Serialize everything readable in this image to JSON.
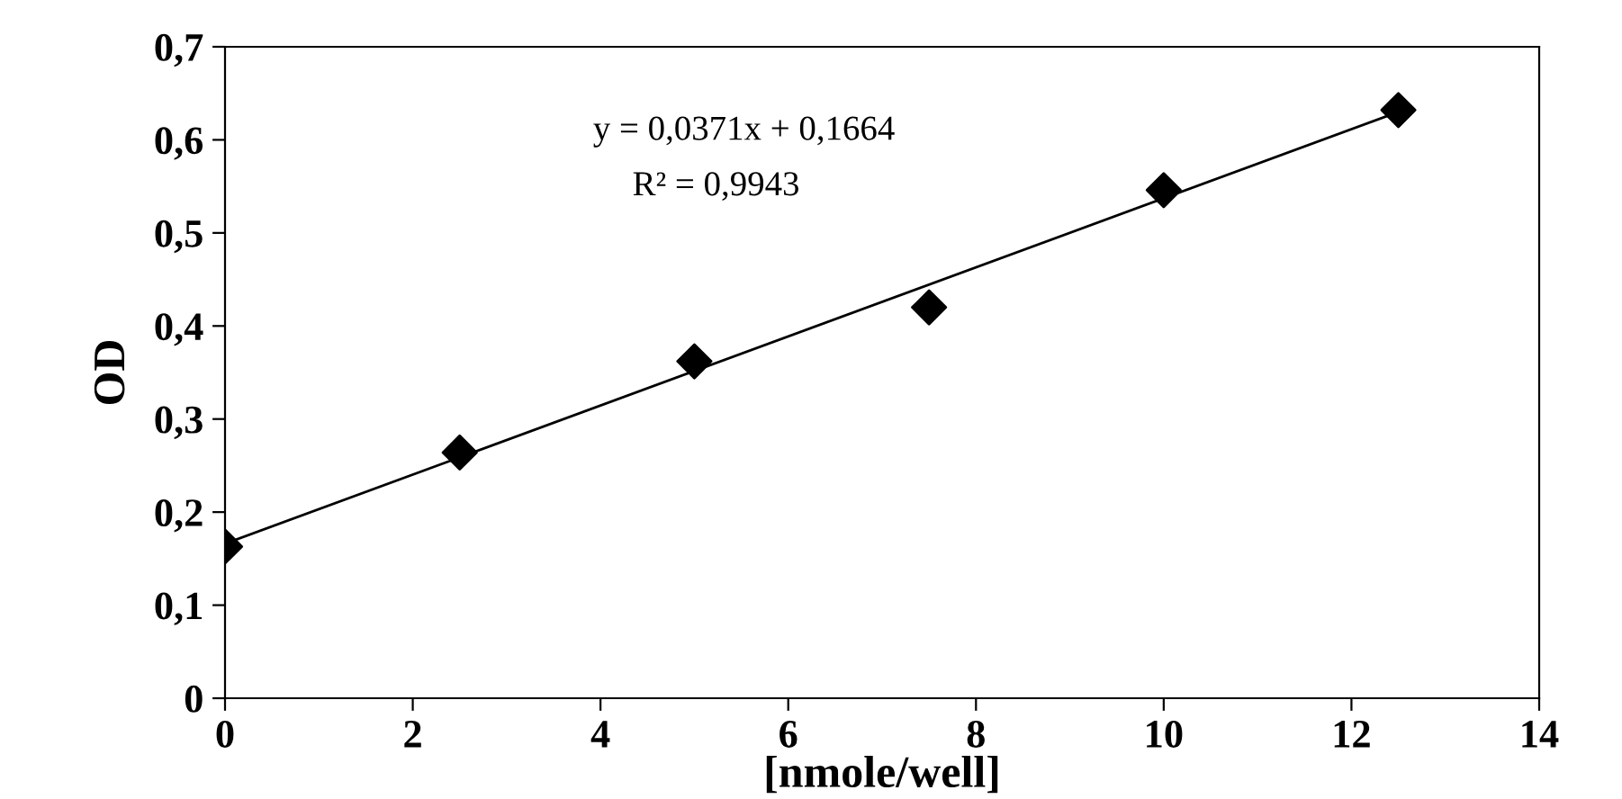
{
  "chart_data": {
    "type": "scatter",
    "xlabel": "[nmole/well]",
    "ylabel": "OD",
    "xlim": [
      0,
      14
    ],
    "xticks": [
      0,
      2,
      4,
      6,
      8,
      10,
      12,
      14
    ],
    "ylim": [
      0,
      0.7
    ],
    "yticks": [
      {
        "value": 0,
        "label": "0"
      },
      {
        "value": 0.1,
        "label": "0,1"
      },
      {
        "value": 0.2,
        "label": "0,2"
      },
      {
        "value": 0.3,
        "label": "0,3"
      },
      {
        "value": 0.4,
        "label": "0,4"
      },
      {
        "value": 0.5,
        "label": "0,5"
      },
      {
        "value": 0.6,
        "label": "0,6"
      },
      {
        "value": 0.7,
        "label": "0,7"
      }
    ],
    "series": [
      {
        "color": "#000000",
        "marker": "diamond",
        "x": [
          0,
          2.5,
          5,
          7.5,
          10,
          12.5
        ],
        "values": [
          0.163,
          0.264,
          0.362,
          0.42,
          0.546,
          0.632
        ]
      },
      {
        "type": "line",
        "color": "#000000",
        "marker": "none",
        "line_style": "solid",
        "x": [
          0,
          12.5
        ],
        "values": [
          0.166,
          0.63
        ]
      }
    ],
    "annotations": [
      "y = 0,0371x + 0,1664",
      "R² = 0,9943"
    ],
    "grid": false,
    "legend": false
  }
}
